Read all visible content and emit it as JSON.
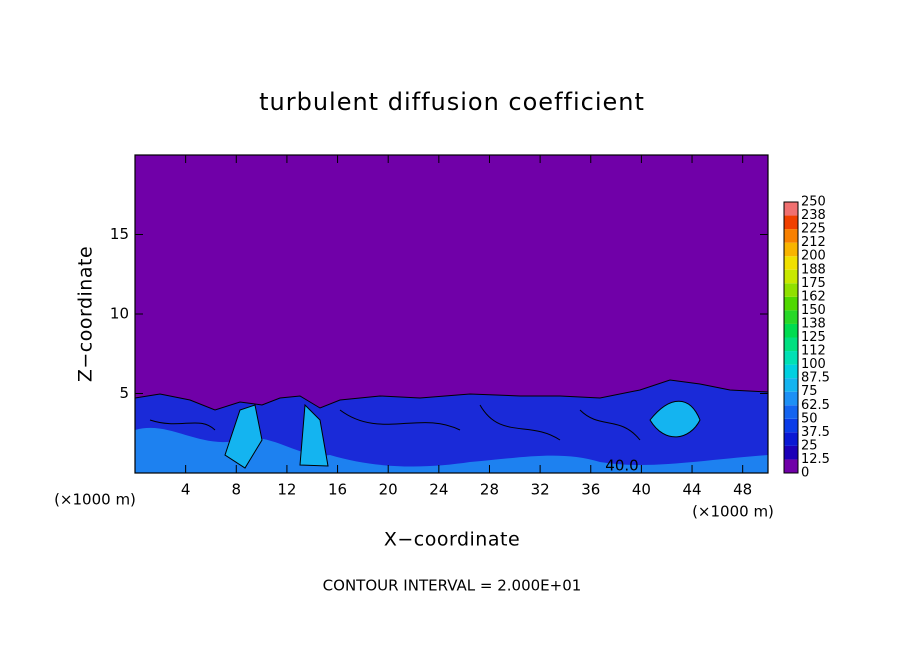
{
  "chart_data": {
    "type": "contour",
    "title": "turbulent diffusion coefficient",
    "x_label": "X−coordinate",
    "y_label": "Z−coordinate",
    "x_unit": "(×1000 m)",
    "y_unit": "(×1000 m)",
    "footer": "CONTOUR INTERVAL = 2.000E+01",
    "annotations": [
      "40.0"
    ],
    "xlim": [
      0,
      50
    ],
    "xticks": [
      4,
      8,
      12,
      16,
      20,
      24,
      28,
      32,
      36,
      40,
      44,
      48
    ],
    "ylim": [
      0,
      20
    ],
    "yticks": [
      5,
      10,
      15
    ],
    "colorbar": {
      "ticks": [
        0,
        12.5,
        25,
        37.5,
        50,
        62.5,
        75,
        87.5,
        100,
        {
          "value": 112.5,
          "label": "112"
        },
        125,
        {
          "value": 137.5,
          "label": "138"
        },
        150,
        {
          "value": 162.5,
          "label": "162"
        },
        175,
        {
          "value": 187.5,
          "label": "188"
        },
        200,
        {
          "value": 212.5,
          "label": "212"
        },
        225,
        {
          "value": 237.5,
          "label": "238"
        },
        250
      ],
      "colors": [
        "#7000a8",
        "#1c00b8",
        "#0a18d4",
        "#0a3ce8",
        "#1464f0",
        "#1e90f5",
        "#14b4f0",
        "#00d0e0",
        "#00e0b4",
        "#00e080",
        "#00dc50",
        "#28d828",
        "#50d800",
        "#90e000",
        "#c8e800",
        "#f0e000",
        "#f8b400",
        "#f88000",
        "#f04000",
        "#f07070"
      ]
    }
  }
}
